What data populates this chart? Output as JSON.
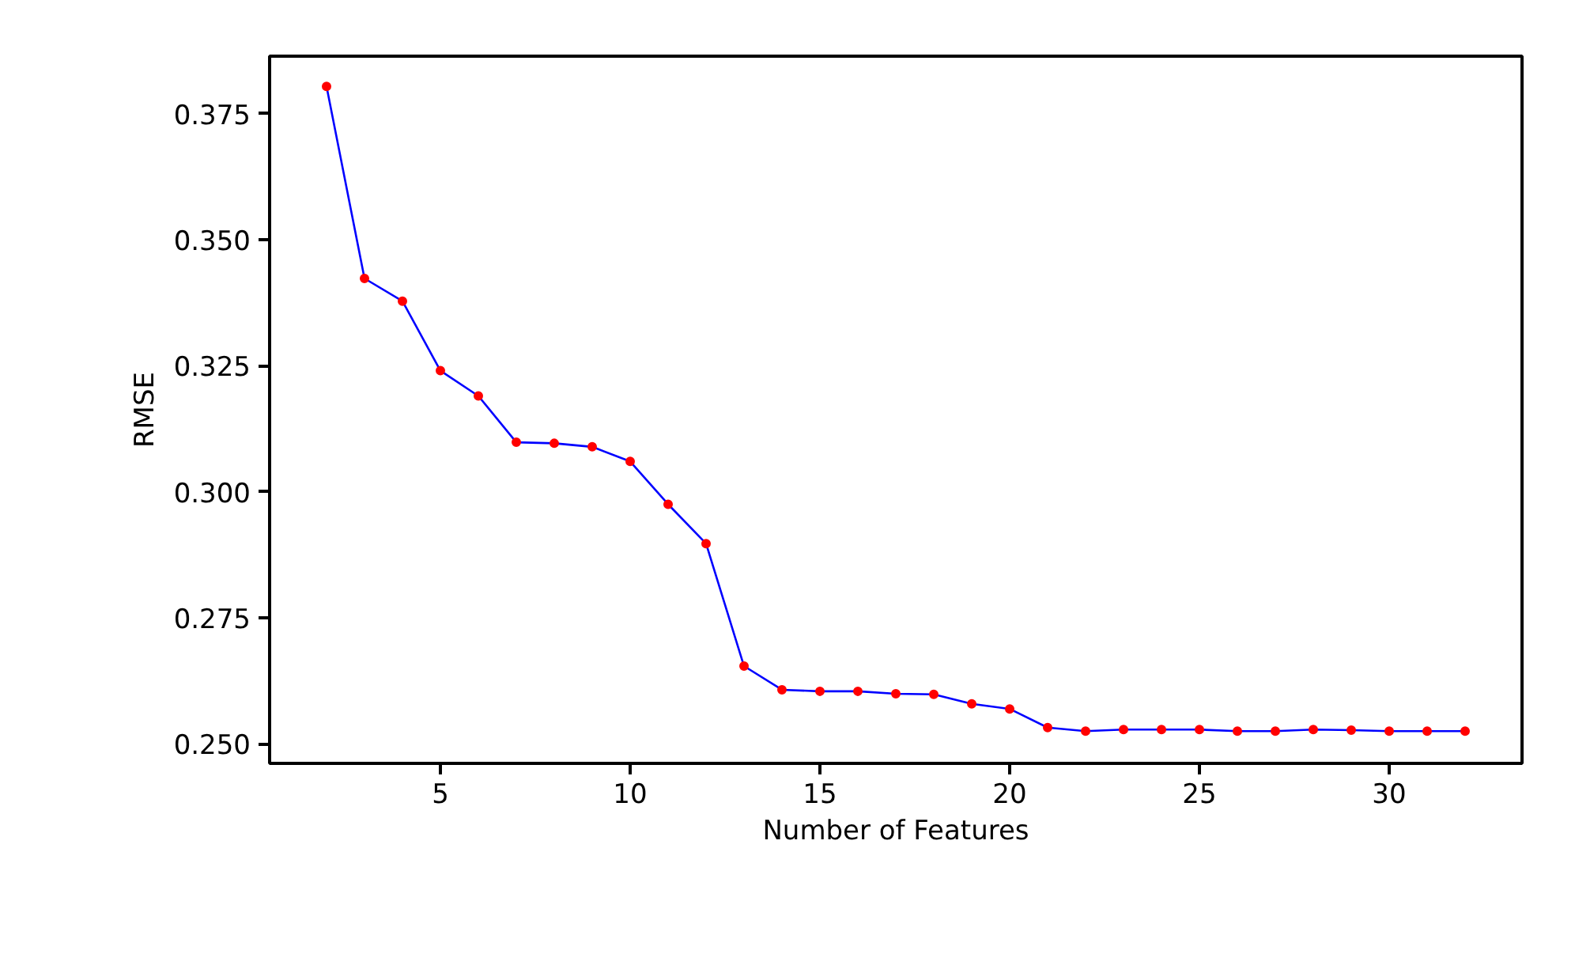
{
  "chart_data": {
    "type": "line",
    "xlabel": "Number of Features",
    "ylabel": "RMSE",
    "x": [
      2,
      3,
      4,
      5,
      6,
      7,
      8,
      9,
      10,
      11,
      12,
      13,
      14,
      15,
      16,
      17,
      18,
      19,
      20,
      21,
      22,
      23,
      24,
      25,
      26,
      27,
      28,
      29,
      30,
      31,
      32
    ],
    "series": [
      {
        "color": "#0000ff",
        "colors": [
          "#ff0000",
          "#ff0000",
          "#ff0000",
          "#ff0000",
          "#ff0000",
          "#ff0000",
          "#ff0000",
          "#ff0000",
          "#ff0000",
          "#ff0000",
          "#ff0000",
          "#ff0000",
          "#ff0000",
          "#ff0000",
          "#ff0000",
          "#ff0000",
          "#ff0000",
          "#ff0000",
          "#ff0000",
          "#ff0000",
          "#ff0000",
          "#ff0000",
          "#ff0000",
          "#ff0000",
          "#ff0000",
          "#ff0000",
          "#ff0000",
          "#ff0000",
          "#ff0000",
          "#ff0000",
          "#ff0000"
        ],
        "values": [
          0.3804,
          0.3423,
          0.3378,
          0.324,
          0.319,
          0.3098,
          0.3096,
          0.3089,
          0.306,
          0.2975,
          0.2897,
          0.2654,
          0.2607,
          0.2604,
          0.2604,
          0.2599,
          0.2598,
          0.2579,
          0.2569,
          0.2532,
          0.2525,
          0.2528,
          0.2528,
          0.2528,
          0.2525,
          0.2525,
          0.2528,
          0.2527,
          0.2525,
          0.2525,
          0.2525
        ]
      }
    ],
    "xlim": [
      0.5,
      33.5
    ],
    "ylim": [
      0.2461,
      0.3864
    ],
    "xticks": [
      5,
      10,
      15,
      20,
      25,
      30
    ],
    "yticks": [
      {
        "value": 0.25,
        "label": "0.250"
      },
      {
        "value": 0.275,
        "label": "0.275"
      },
      {
        "value": 0.3,
        "label": "0.300"
      },
      {
        "value": 0.325,
        "label": "0.325"
      },
      {
        "value": 0.35,
        "label": "0.350"
      },
      {
        "value": 0.375,
        "label": "0.375"
      }
    ],
    "grid": false,
    "marker": "circle",
    "line_style": "solid"
  }
}
